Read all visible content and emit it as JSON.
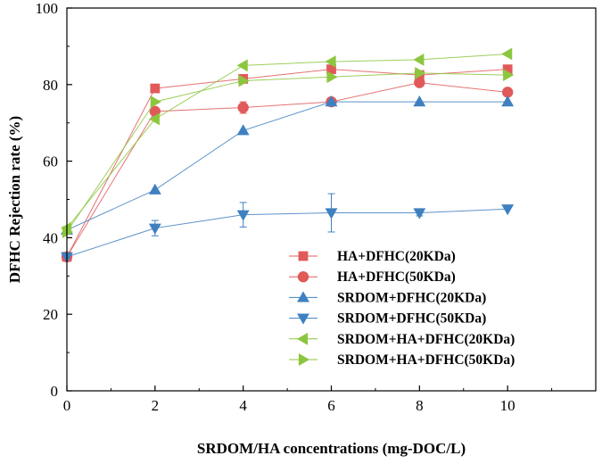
{
  "chart_data": {
    "type": "line",
    "title": "",
    "xlabel": "SRDOM/HA concentrations (mg-DOC/L)",
    "ylabel": "DFHC Rejection rate (%)",
    "xlim": [
      0,
      12
    ],
    "ylim": [
      0,
      100
    ],
    "x_ticks": [
      0,
      2,
      4,
      6,
      8,
      10
    ],
    "x_tick_labels": [
      "0",
      "2",
      "4",
      "6",
      "8",
      "10"
    ],
    "y_ticks": [
      0,
      20,
      40,
      60,
      80,
      100
    ],
    "y_tick_labels": [
      "0",
      "20",
      "40",
      "60",
      "80",
      "100"
    ],
    "grid": false,
    "legend_position": "bottom-right",
    "x": [
      0,
      2,
      4,
      6,
      8,
      10
    ],
    "series": [
      {
        "name": "HA+DFHC(20KDa)",
        "marker": "square",
        "color": "#e05a5a",
        "values": [
          35.0,
          79.0,
          81.5,
          84.0,
          82.5,
          84.0
        ],
        "errors": [
          0,
          0,
          0,
          0,
          0,
          0
        ]
      },
      {
        "name": "HA+DFHC(50KDa)",
        "marker": "circle",
        "color": "#e05a5a",
        "values": [
          35.0,
          73.0,
          74.0,
          75.5,
          80.5,
          78.0
        ],
        "errors": [
          0,
          0,
          1.5,
          0,
          0,
          0
        ]
      },
      {
        "name": "SRDOM+DFHC(20KDa)",
        "marker": "triangle-up",
        "color": "#3f80c0",
        "values": [
          42.0,
          52.5,
          68.0,
          75.5,
          75.5,
          75.5
        ],
        "errors": [
          0,
          0,
          0,
          0,
          0,
          0
        ]
      },
      {
        "name": "SRDOM+DFHC(50KDa)",
        "marker": "triangle-down",
        "color": "#3f80c0",
        "values": [
          35.0,
          42.5,
          46.0,
          46.5,
          46.5,
          47.5
        ],
        "errors": [
          0,
          2.0,
          3.2,
          5.0,
          0.8,
          0
        ]
      },
      {
        "name": "SRDOM+HA+DFHC(20KDa)",
        "marker": "triangle-left",
        "color": "#8cc63f",
        "values": [
          42.5,
          71.0,
          85.0,
          86.0,
          86.5,
          88.0
        ],
        "errors": [
          0,
          0,
          0,
          0,
          0,
          0
        ]
      },
      {
        "name": "SRDOM+HA+DFHC(50KDa)",
        "marker": "triangle-right",
        "color": "#8cc63f",
        "values": [
          41.5,
          75.5,
          81.0,
          82.0,
          83.0,
          82.5
        ],
        "errors": [
          0,
          0,
          0,
          0,
          0,
          0
        ]
      }
    ]
  }
}
